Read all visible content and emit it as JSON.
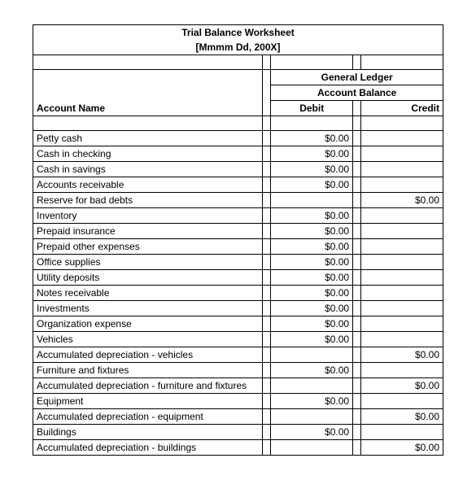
{
  "title": "Trial Balance Worksheet",
  "subtitle": "[Mmmm Dd, 200X]",
  "header": {
    "group_title": "General Ledger",
    "group_sub": "Account Balance",
    "account_name": "Account Name",
    "debit": "Debit",
    "credit": "Credit"
  },
  "rows": [
    {
      "name": "Petty cash",
      "debit": "$0.00",
      "credit": ""
    },
    {
      "name": "Cash in checking",
      "debit": "$0.00",
      "credit": ""
    },
    {
      "name": "Cash in savings",
      "debit": "$0.00",
      "credit": ""
    },
    {
      "name": "Accounts receivable",
      "debit": "$0.00",
      "credit": ""
    },
    {
      "name": "Reserve for bad debts",
      "debit": "",
      "credit": "$0.00"
    },
    {
      "name": "Inventory",
      "debit": "$0.00",
      "credit": ""
    },
    {
      "name": "Prepaid insurance",
      "debit": "$0.00",
      "credit": ""
    },
    {
      "name": "Prepaid other expenses",
      "debit": "$0.00",
      "credit": ""
    },
    {
      "name": "Office supplies",
      "debit": "$0.00",
      "credit": ""
    },
    {
      "name": "Utility deposits",
      "debit": "$0.00",
      "credit": ""
    },
    {
      "name": "Notes receivable",
      "debit": "$0.00",
      "credit": ""
    },
    {
      "name": "Investments",
      "debit": "$0.00",
      "credit": ""
    },
    {
      "name": "Organization expense",
      "debit": "$0.00",
      "credit": ""
    },
    {
      "name": "Vehicles",
      "debit": "$0.00",
      "credit": ""
    },
    {
      "name": "Accumulated depreciation - vehicles",
      "debit": "",
      "credit": "$0.00"
    },
    {
      "name": "Furniture and fixtures",
      "debit": "$0.00",
      "credit": ""
    },
    {
      "name": "Accumulated depreciation - furniture and fixtures",
      "debit": "",
      "credit": "$0.00"
    },
    {
      "name": "Equipment",
      "debit": "$0.00",
      "credit": ""
    },
    {
      "name": "Accumulated depreciation - equipment",
      "debit": "",
      "credit": "$0.00"
    },
    {
      "name": "Buildings",
      "debit": "$0.00",
      "credit": ""
    },
    {
      "name": "Accumulated depreciation - buildings",
      "debit": "",
      "credit": "$0.00"
    }
  ],
  "style": {
    "font_family": "Arial",
    "font_size_pt": 9,
    "border_color": "#000000",
    "background_color": "#ffffff",
    "text_color": "#000000"
  }
}
